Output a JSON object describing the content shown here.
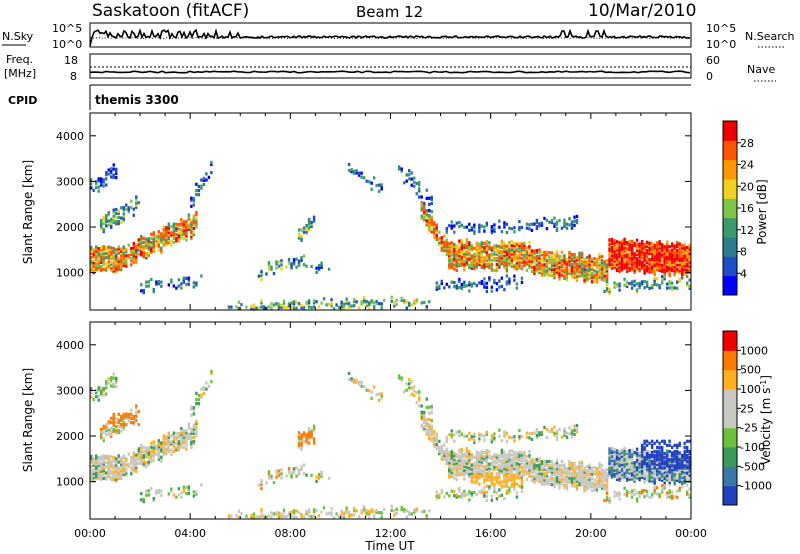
{
  "header": {
    "station": "Saskatoon (fitACF)",
    "beam": "Beam 12",
    "date": "10/Mar/2010"
  },
  "panels": {
    "nsky": {
      "label": "N.Sky",
      "left_ticks": [
        "10^5",
        "10^0"
      ],
      "right_ticks": [
        "10^5",
        "10^0"
      ],
      "right_label": "N.Search"
    },
    "freq": {
      "label_line1": "Freq.",
      "label_line2": "[MHz]",
      "left_ticks": [
        "18",
        "8"
      ],
      "right_ticks": [
        "60",
        "0"
      ],
      "right_label": "Nave"
    },
    "cpid": {
      "label": "CPID",
      "value": "themis 3300"
    }
  },
  "chart_data": [
    {
      "type": "heatmap",
      "title": "",
      "ylabel": "Slant Range [km]",
      "xlabel": "",
      "ylim": [
        180,
        4500
      ],
      "yticks": [
        "1000",
        "2000",
        "3000",
        "4000"
      ],
      "xticks": [
        "00:00",
        "04:00",
        "08:00",
        "12:00",
        "16:00",
        "20:00",
        "00:00"
      ],
      "colorbar": {
        "label": "Power [dB]",
        "ticks": [
          "28",
          "24",
          "20",
          "16",
          "12",
          "8",
          "4"
        ],
        "colors": [
          "#0000ff",
          "#1f4fc7",
          "#2e7d8f",
          "#3a9a6a",
          "#7fc34a",
          "#f0d020",
          "#ff9900",
          "#ff5500",
          "#ee0000"
        ]
      },
      "features": [
        {
          "region": "enhanced scatter 00:00-04:30",
          "range_km": [
            900,
            1600
          ],
          "level_db": 26
        },
        {
          "region": "scatter 13:30-24:00",
          "range_km": [
            800,
            1800
          ],
          "level_db": 24
        }
      ]
    },
    {
      "type": "heatmap",
      "title": "",
      "ylabel": "Slant Range [km]",
      "xlabel": "Time UT",
      "ylim": [
        180,
        4500
      ],
      "yticks": [
        "1000",
        "2000",
        "3000",
        "4000"
      ],
      "xticks": [
        "00:00",
        "04:00",
        "08:00",
        "12:00",
        "16:00",
        "20:00",
        "00:00"
      ],
      "colorbar": {
        "label": "Velocity [m s^-1]",
        "ticks": [
          "1000",
          "500",
          "100",
          "25",
          "-25",
          "-100",
          "-500",
          "-1000"
        ],
        "colors": [
          "#2340c0",
          "#3a78a8",
          "#3d9a5a",
          "#6cc040",
          "#c8c8c0",
          "#c8c8c0",
          "#ffb020",
          "#ff7a00",
          "#ee0000"
        ]
      }
    }
  ]
}
